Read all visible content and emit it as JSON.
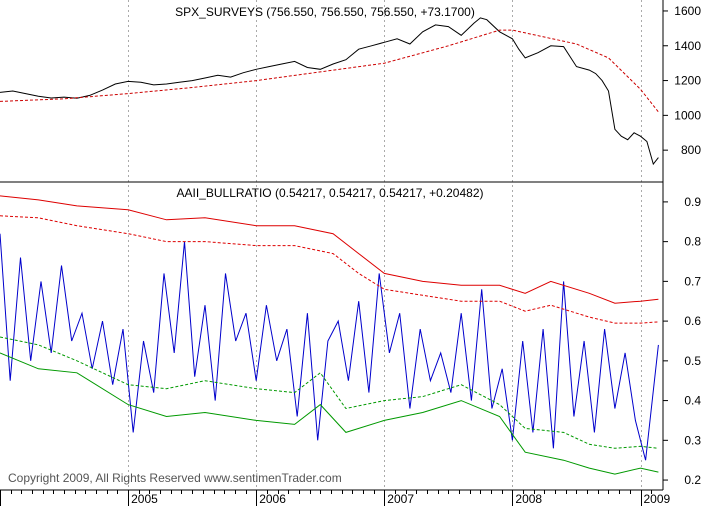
{
  "chart_data": [
    {
      "type": "line",
      "title": "SPX_SURVEYS (756.550, 756.550, 756.550, +73.1700)",
      "ylim": [
        640,
        1640
      ],
      "yticks": [
        800,
        1000,
        1200,
        1400,
        1600
      ],
      "grid": "vertical dotted at year boundaries",
      "series": [
        {
          "color": "#000000",
          "style": "solid",
          "x": [
            2004.0,
            2004.1,
            2004.2,
            2004.3,
            2004.4,
            2004.5,
            2004.6,
            2004.7,
            2004.8,
            2004.9,
            2005.0,
            2005.1,
            2005.2,
            2005.3,
            2005.4,
            2005.5,
            2005.6,
            2005.7,
            2005.8,
            2005.9,
            2006.0,
            2006.1,
            2006.2,
            2006.3,
            2006.4,
            2006.5,
            2006.6,
            2006.7,
            2006.8,
            2006.9,
            2007.0,
            2007.1,
            2007.2,
            2007.3,
            2007.4,
            2007.5,
            2007.6,
            2007.7,
            2007.75,
            2007.8,
            2007.9,
            2008.0,
            2008.05,
            2008.1,
            2008.2,
            2008.3,
            2008.4,
            2008.5,
            2008.6,
            2008.65,
            2008.7,
            2008.75,
            2008.8,
            2008.85,
            2008.9,
            2008.95,
            2009.0,
            2009.05,
            2009.1,
            2009.14
          ],
          "values": [
            1132,
            1140,
            1125,
            1110,
            1100,
            1105,
            1098,
            1115,
            1145,
            1180,
            1195,
            1190,
            1175,
            1180,
            1190,
            1200,
            1215,
            1230,
            1220,
            1245,
            1265,
            1280,
            1295,
            1310,
            1275,
            1265,
            1295,
            1320,
            1380,
            1400,
            1420,
            1440,
            1410,
            1480,
            1520,
            1510,
            1460,
            1530,
            1560,
            1550,
            1480,
            1440,
            1380,
            1330,
            1360,
            1400,
            1395,
            1280,
            1260,
            1240,
            1200,
            1140,
            920,
            880,
            860,
            900,
            880,
            850,
            720,
            757
          ]
        },
        {
          "color": "#cc0000",
          "style": "dashed",
          "x": [
            2004.0,
            2004.5,
            2005.0,
            2005.5,
            2006.0,
            2006.5,
            2007.0,
            2007.5,
            2007.9,
            2008.0,
            2008.5,
            2008.75,
            2009.0,
            2009.14
          ],
          "values": [
            1080,
            1095,
            1125,
            1160,
            1200,
            1250,
            1300,
            1400,
            1490,
            1490,
            1410,
            1330,
            1150,
            1020
          ]
        }
      ]
    },
    {
      "type": "line",
      "title": "AAII_BULLRATIO (0.54217, 0.54217, 0.54217, +0.20482)",
      "ylim": [
        0.18,
        0.94
      ],
      "yticks": [
        0.2,
        0.3,
        0.4,
        0.5,
        0.6,
        0.7,
        0.8,
        0.9
      ],
      "xlim": [
        2004.0,
        2009.14
      ],
      "xticks": [
        "2005",
        "2006",
        "2007",
        "2008",
        "2009"
      ],
      "xtick_values": [
        2005.0,
        2006.0,
        2007.0,
        2008.0,
        2009.0
      ],
      "grid": "vertical dotted at year boundaries",
      "series": [
        {
          "color": "#0000cc",
          "style": "solid",
          "x": [
            2004.0,
            2004.08,
            2004.16,
            2004.24,
            2004.32,
            2004.4,
            2004.48,
            2004.56,
            2004.64,
            2004.72,
            2004.8,
            2004.88,
            2004.96,
            2005.04,
            2005.12,
            2005.2,
            2005.28,
            2005.36,
            2005.44,
            2005.52,
            2005.6,
            2005.68,
            2005.76,
            2005.84,
            2005.92,
            2006.0,
            2006.08,
            2006.16,
            2006.24,
            2006.32,
            2006.4,
            2006.48,
            2006.56,
            2006.64,
            2006.72,
            2006.8,
            2006.88,
            2006.96,
            2007.04,
            2007.12,
            2007.2,
            2007.28,
            2007.36,
            2007.44,
            2007.52,
            2007.6,
            2007.68,
            2007.76,
            2007.84,
            2007.92,
            2008.0,
            2008.08,
            2008.16,
            2008.24,
            2008.32,
            2008.4,
            2008.48,
            2008.56,
            2008.64,
            2008.72,
            2008.8,
            2008.88,
            2008.96,
            2009.04,
            2009.14
          ],
          "values": [
            0.82,
            0.45,
            0.76,
            0.5,
            0.7,
            0.52,
            0.74,
            0.55,
            0.62,
            0.48,
            0.6,
            0.44,
            0.58,
            0.32,
            0.55,
            0.42,
            0.72,
            0.52,
            0.8,
            0.46,
            0.64,
            0.4,
            0.72,
            0.55,
            0.62,
            0.45,
            0.64,
            0.5,
            0.58,
            0.36,
            0.62,
            0.3,
            0.55,
            0.6,
            0.45,
            0.65,
            0.42,
            0.72,
            0.52,
            0.62,
            0.38,
            0.58,
            0.45,
            0.52,
            0.42,
            0.62,
            0.4,
            0.68,
            0.38,
            0.48,
            0.3,
            0.55,
            0.32,
            0.58,
            0.28,
            0.7,
            0.36,
            0.55,
            0.32,
            0.58,
            0.38,
            0.52,
            0.35,
            0.25,
            0.54
          ]
        },
        {
          "color": "#dd0000",
          "style": "solid",
          "x": [
            2004.0,
            2004.3,
            2004.6,
            2005.0,
            2005.3,
            2005.6,
            2006.0,
            2006.3,
            2006.6,
            2006.8,
            2007.0,
            2007.3,
            2007.6,
            2007.9,
            2008.1,
            2008.3,
            2008.6,
            2008.8,
            2009.0,
            2009.14
          ],
          "values": [
            0.915,
            0.905,
            0.89,
            0.88,
            0.855,
            0.86,
            0.84,
            0.84,
            0.82,
            0.77,
            0.72,
            0.7,
            0.69,
            0.69,
            0.67,
            0.7,
            0.67,
            0.645,
            0.65,
            0.655
          ]
        },
        {
          "color": "#dd0000",
          "style": "dashed",
          "x": [
            2004.0,
            2004.3,
            2004.6,
            2005.0,
            2005.3,
            2005.6,
            2006.0,
            2006.3,
            2006.6,
            2006.8,
            2007.0,
            2007.3,
            2007.6,
            2007.9,
            2008.1,
            2008.3,
            2008.6,
            2008.8,
            2009.0,
            2009.14
          ],
          "values": [
            0.865,
            0.86,
            0.84,
            0.82,
            0.8,
            0.8,
            0.79,
            0.79,
            0.77,
            0.72,
            0.68,
            0.665,
            0.65,
            0.65,
            0.625,
            0.64,
            0.61,
            0.595,
            0.595,
            0.598
          ]
        },
        {
          "color": "#009900",
          "style": "dashed",
          "x": [
            2004.0,
            2004.3,
            2004.6,
            2005.0,
            2005.3,
            2005.6,
            2006.0,
            2006.3,
            2006.5,
            2006.7,
            2007.0,
            2007.3,
            2007.6,
            2007.9,
            2008.1,
            2008.4,
            2008.6,
            2008.8,
            2009.0,
            2009.14
          ],
          "values": [
            0.56,
            0.54,
            0.5,
            0.44,
            0.43,
            0.45,
            0.43,
            0.42,
            0.47,
            0.38,
            0.4,
            0.41,
            0.44,
            0.39,
            0.33,
            0.32,
            0.29,
            0.28,
            0.285,
            0.28
          ]
        },
        {
          "color": "#009900",
          "style": "solid",
          "x": [
            2004.0,
            2004.3,
            2004.6,
            2005.0,
            2005.3,
            2005.6,
            2006.0,
            2006.3,
            2006.5,
            2006.7,
            2007.0,
            2007.3,
            2007.6,
            2007.9,
            2008.1,
            2008.4,
            2008.6,
            2008.8,
            2009.0,
            2009.14
          ],
          "values": [
            0.52,
            0.48,
            0.47,
            0.39,
            0.36,
            0.37,
            0.35,
            0.34,
            0.39,
            0.32,
            0.35,
            0.37,
            0.4,
            0.36,
            0.27,
            0.25,
            0.23,
            0.215,
            0.23,
            0.22
          ]
        }
      ]
    }
  ],
  "footer": {
    "copyright": "Copyright 2009, All Rights Reserved  www.sentimenTrader.com"
  }
}
